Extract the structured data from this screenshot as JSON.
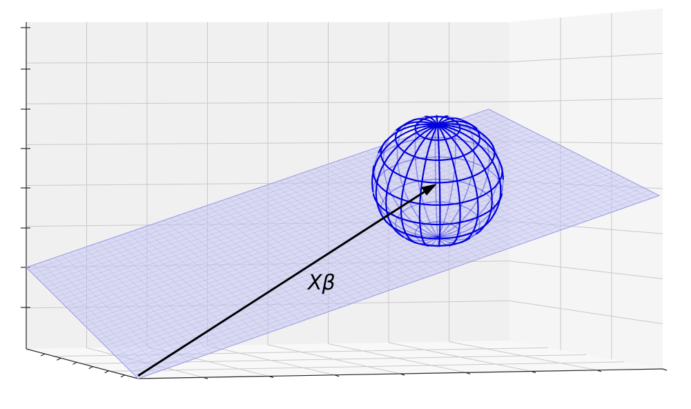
{
  "figure": {
    "vector_label": "Xβ",
    "colors": {
      "pane_back": "#ebebeb",
      "pane_side": "#f3f3f3",
      "pane_floor": "#f7f7f7",
      "grid": "#c8c8c8",
      "axis": "#222222",
      "plane_fill": "#c6c6f4",
      "plane_mesh": "#8f8fe0",
      "sphere": "#0000dd",
      "arrow": "#000000"
    },
    "elements": {
      "plane": "projection-plane",
      "sphere": "wireframe-sphere",
      "arrow": "vector-arrow"
    }
  }
}
